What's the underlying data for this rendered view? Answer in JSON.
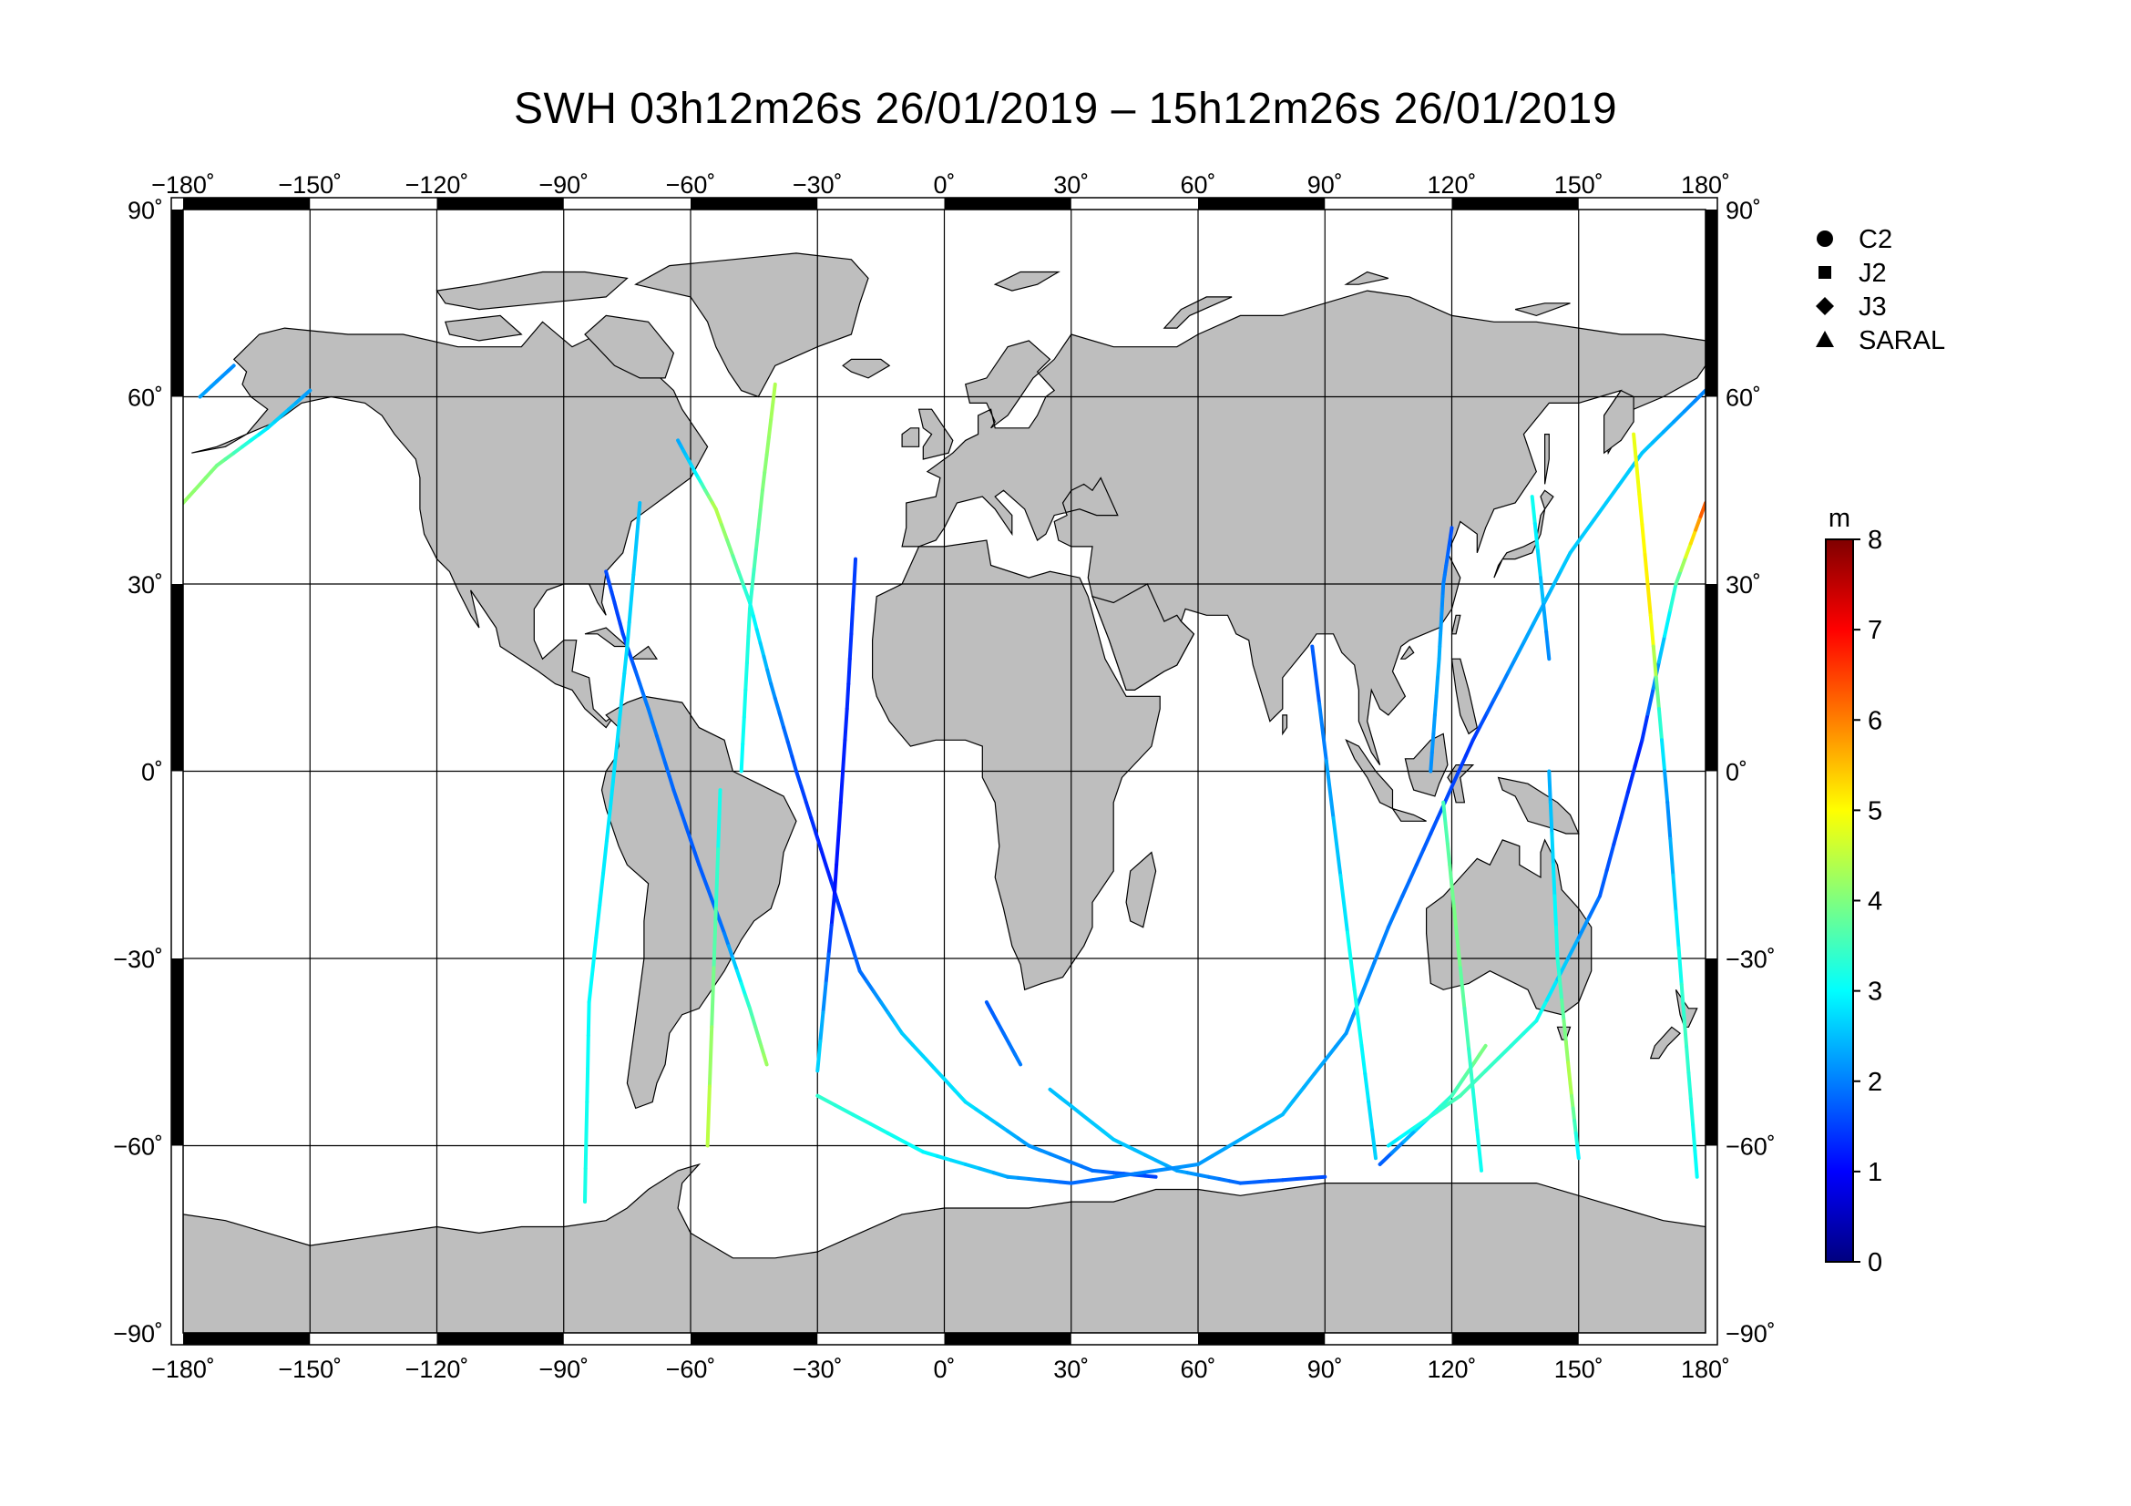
{
  "title": "SWH 03h12m26s 26/01/2019 – 15h12m26s 26/01/2019",
  "lon_ticks": [
    "−180˚",
    "−150˚",
    "−120˚",
    "−90˚",
    "−60˚",
    "−30˚",
    "0˚",
    "30˚",
    "60˚",
    "90˚",
    "120˚",
    "150˚",
    "180˚"
  ],
  "lat_ticks": [
    "90˚",
    "60˚",
    "30˚",
    "0˚",
    "−30˚",
    "−60˚",
    "−90˚"
  ],
  "legend": [
    {
      "symbol": "circle",
      "label": "C2"
    },
    {
      "symbol": "square",
      "label": "J2"
    },
    {
      "symbol": "diamond",
      "label": "J3"
    },
    {
      "symbol": "triangle",
      "label": "SARAL"
    }
  ],
  "colorbar": {
    "unit": "m",
    "min": 0,
    "max": 8,
    "ticks": [
      "0",
      "1",
      "2",
      "3",
      "4",
      "5",
      "6",
      "7",
      "8"
    ],
    "stops": [
      "#00007f",
      "#0000ff",
      "#007fff",
      "#00ffff",
      "#7fff7f",
      "#ffff00",
      "#ff7f00",
      "#ff0000",
      "#7f0000"
    ]
  },
  "colors": {
    "land": "#bebebe",
    "ocean": "#ffffff",
    "grid": "#000000"
  },
  "map_extent": {
    "lon": [
      -180,
      180
    ],
    "lat": [
      -90,
      90
    ]
  },
  "chart_data": {
    "type": "map",
    "tracks": [
      {
        "points": [
          [
            -180,
            43,
            4.2
          ],
          [
            -172,
            49,
            4.0
          ],
          [
            -160,
            55,
            2.8
          ],
          [
            -150,
            61,
            2.2
          ]
        ]
      },
      {
        "points": [
          [
            -176,
            60,
            2.3
          ],
          [
            -168,
            65,
            2.1
          ]
        ]
      },
      {
        "points": [
          [
            -80,
            32,
            1.6
          ],
          [
            -76,
            22,
            1.5
          ],
          [
            -70,
            10,
            2.0
          ],
          [
            -64,
            -3,
            1.8
          ],
          [
            -58,
            -15,
            1.7
          ],
          [
            -52,
            -26,
            1.9
          ],
          [
            -46,
            -38,
            3.5
          ],
          [
            -42,
            -47,
            4.3
          ]
        ]
      },
      {
        "points": [
          [
            -72,
            43,
            2.5
          ],
          [
            -75,
            20,
            2.7
          ],
          [
            -79,
            -6,
            2.8
          ],
          [
            -84,
            -37,
            3.0
          ],
          [
            -85,
            -69,
            3.2
          ]
        ]
      },
      {
        "points": [
          [
            -53,
            -3,
            3.0
          ],
          [
            -56,
            -60,
            4.6
          ]
        ]
      },
      {
        "points": [
          [
            -40,
            62,
            4.4
          ],
          [
            -43,
            45,
            4.0
          ],
          [
            -46,
            26,
            3.3
          ],
          [
            -48,
            0,
            3.0
          ]
        ]
      },
      {
        "points": [
          [
            -63,
            53,
            2.3
          ],
          [
            -59,
            48,
            2.8
          ],
          [
            -54,
            42,
            4.5
          ],
          [
            -46,
            27,
            3.2
          ],
          [
            -41,
            14,
            2.2
          ],
          [
            -35,
            0,
            1.6
          ],
          [
            -28,
            -15,
            1.2
          ],
          [
            -20,
            -32,
            1.8
          ],
          [
            -10,
            -42,
            2.6
          ],
          [
            5,
            -53,
            2.8
          ],
          [
            20,
            -60,
            2.2
          ],
          [
            35,
            -64,
            1.9
          ],
          [
            50,
            -65,
            1.5
          ]
        ]
      },
      {
        "points": [
          [
            -21,
            34,
            1.5
          ],
          [
            -23,
            10,
            1.3
          ],
          [
            -26,
            -20,
            1.1
          ],
          [
            -30,
            -48,
            2.8
          ]
        ]
      },
      {
        "points": [
          [
            -30,
            -52,
            3.4
          ],
          [
            -5,
            -61,
            3.0
          ],
          [
            15,
            -65,
            2.3
          ],
          [
            30,
            -66,
            1.8
          ]
        ]
      },
      {
        "points": [
          [
            10,
            -37,
            1.7
          ],
          [
            18,
            -47,
            2.0
          ]
        ]
      },
      {
        "points": [
          [
            25,
            -51,
            2.5
          ],
          [
            40,
            -59,
            2.6
          ],
          [
            55,
            -64,
            2.3
          ],
          [
            70,
            -66,
            1.8
          ],
          [
            90,
            -65,
            1.6
          ]
        ]
      },
      {
        "points": [
          [
            30,
            -66,
            1.8
          ],
          [
            60,
            -63,
            2.2
          ],
          [
            80,
            -55,
            2.5
          ],
          [
            95,
            -42,
            2.2
          ],
          [
            105,
            -25,
            2.0
          ],
          [
            115,
            -10,
            1.7
          ],
          [
            125,
            5,
            1.4
          ],
          [
            135,
            18,
            2.2
          ],
          [
            148,
            35,
            2.6
          ],
          [
            165,
            51,
            2.6
          ],
          [
            180,
            61,
            2.0
          ]
        ]
      },
      {
        "points": [
          [
            87,
            20,
            1.6
          ],
          [
            97,
            -35,
            3.2
          ],
          [
            102,
            -62,
            2.6
          ]
        ]
      },
      {
        "points": [
          [
            103,
            -63,
            1.6
          ],
          [
            120,
            -52,
            3.5
          ],
          [
            128,
            -44,
            4.0
          ]
        ]
      },
      {
        "points": [
          [
            105,
            -60,
            2.8
          ],
          [
            122,
            -52,
            3.6
          ],
          [
            140,
            -40,
            3.2
          ],
          [
            155,
            -20,
            1.8
          ],
          [
            165,
            5,
            1.2
          ],
          [
            173,
            30,
            3.5
          ],
          [
            180,
            43,
            6.5
          ]
        ]
      },
      {
        "points": [
          [
            118,
            -5,
            3.5
          ],
          [
            121,
            -25,
            4.0
          ],
          [
            127,
            -64,
            3.0
          ]
        ]
      },
      {
        "points": [
          [
            120,
            39,
            1.6
          ],
          [
            118,
            30,
            2.0
          ],
          [
            117,
            18,
            2.4
          ],
          [
            115,
            0,
            2.1
          ]
        ]
      },
      {
        "points": [
          [
            139,
            44,
            3.2
          ],
          [
            143,
            18,
            2.0
          ]
        ]
      },
      {
        "points": [
          [
            143,
            0,
            2.3
          ],
          [
            145,
            -30,
            3.2
          ],
          [
            148,
            -50,
            4.5
          ],
          [
            150,
            -62,
            2.8
          ]
        ]
      },
      {
        "points": [
          [
            163,
            54,
            4.8
          ],
          [
            167,
            25,
            5.2
          ],
          [
            171,
            -5,
            2.0
          ],
          [
            175,
            -40,
            3.5
          ],
          [
            178,
            -65,
            3.0
          ]
        ]
      }
    ]
  }
}
